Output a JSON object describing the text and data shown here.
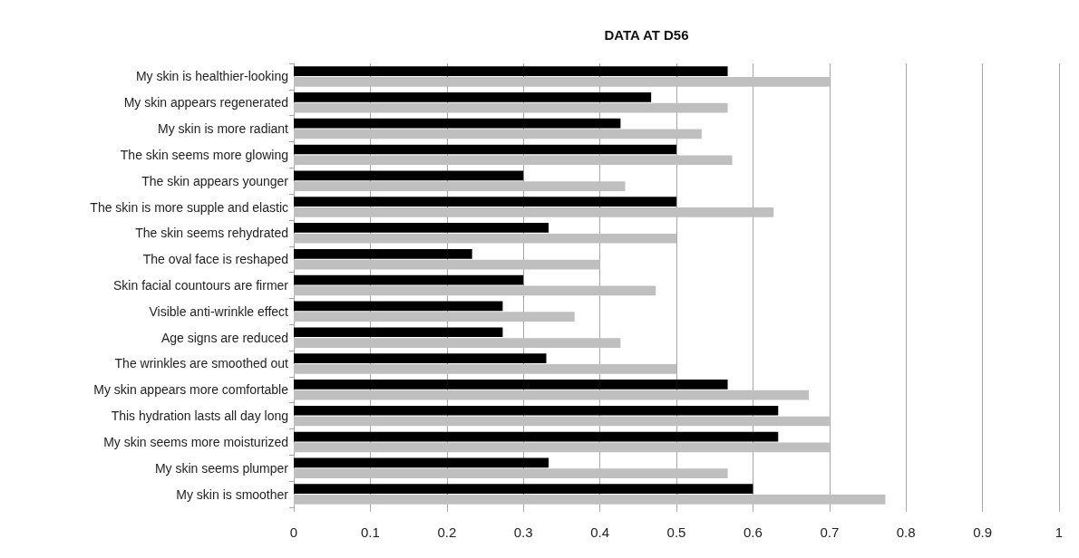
{
  "chart_data": {
    "type": "bar",
    "orientation": "horizontal",
    "title": "DATA AT D56",
    "categories": [
      "My skin is healthier-looking",
      "My skin appears regenerated",
      "My skin is more radiant",
      "The skin seems more glowing",
      "The skin appears younger",
      "The skin is more supple and elastic",
      "The skin seems rehydrated",
      "The oval face is reshaped",
      "Skin facial countours are firmer",
      "Visible anti-wrinkle effect",
      "Age signs are reduced",
      "The wrinkles are smoothed out",
      "My skin appears more comfortable",
      "This hydration lasts all day long",
      "My skin seems more moisturized",
      "My skin seems plumper",
      "My skin is smoother"
    ],
    "series": [
      {
        "color": "#000000",
        "values": [
          0.567,
          0.467,
          0.427,
          0.5,
          0.3,
          0.5,
          0.333,
          0.233,
          0.3,
          0.273,
          0.273,
          0.33,
          0.567,
          0.633,
          0.633,
          0.333,
          0.6
        ]
      },
      {
        "color": "#bfbfbf",
        "values": [
          0.7,
          0.567,
          0.533,
          0.573,
          0.433,
          0.627,
          0.5,
          0.4,
          0.473,
          0.367,
          0.427,
          0.5,
          0.673,
          0.7,
          0.7,
          0.567,
          0.773
        ]
      }
    ],
    "xlim": [
      0,
      1
    ],
    "xticks": [
      0,
      0.1,
      0.2,
      0.3,
      0.4,
      0.5,
      0.6,
      0.7,
      0.8,
      0.9,
      1
    ],
    "grid": "x"
  }
}
